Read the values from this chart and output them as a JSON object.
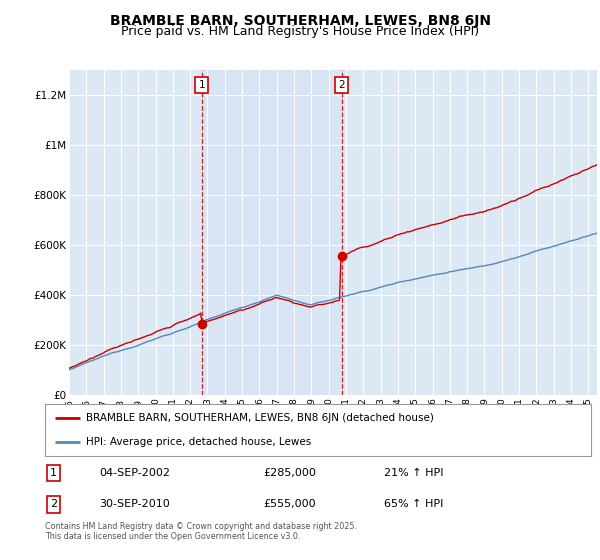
{
  "title": "BRAMBLE BARN, SOUTHERHAM, LEWES, BN8 6JN",
  "subtitle": "Price paid vs. HM Land Registry's House Price Index (HPI)",
  "background_color": "#ffffff",
  "plot_bg_color": "#dde8f5",
  "grid_color": "#ffffff",
  "ylim": [
    0,
    1300000
  ],
  "yticks": [
    0,
    200000,
    400000,
    600000,
    800000,
    1000000,
    1200000
  ],
  "ytick_labels": [
    "£0",
    "£200K",
    "£400K",
    "£600K",
    "£800K",
    "£1M",
    "£1.2M"
  ],
  "x_start_year": 1995,
  "x_end_year": 2025,
  "red_line_color": "#cc0000",
  "blue_line_color": "#5588bb",
  "sale1_year": 2002.67,
  "sale1_price": 285000,
  "sale2_year": 2010.75,
  "sale2_price": 555000,
  "vline_color": "#cc0000",
  "sale1_label": "1",
  "sale2_label": "2",
  "legend_red_label": "BRAMBLE BARN, SOUTHERHAM, LEWES, BN8 6JN (detached house)",
  "legend_blue_label": "HPI: Average price, detached house, Lewes",
  "annotation1_date": "04-SEP-2002",
  "annotation1_price": "£285,000",
  "annotation1_hpi": "21% ↑ HPI",
  "annotation2_date": "30-SEP-2010",
  "annotation2_price": "£555,000",
  "annotation2_hpi": "65% ↑ HPI",
  "footer": "Contains HM Land Registry data © Crown copyright and database right 2025.\nThis data is licensed under the Open Government Licence v3.0.",
  "title_fontsize": 10,
  "subtitle_fontsize": 9
}
